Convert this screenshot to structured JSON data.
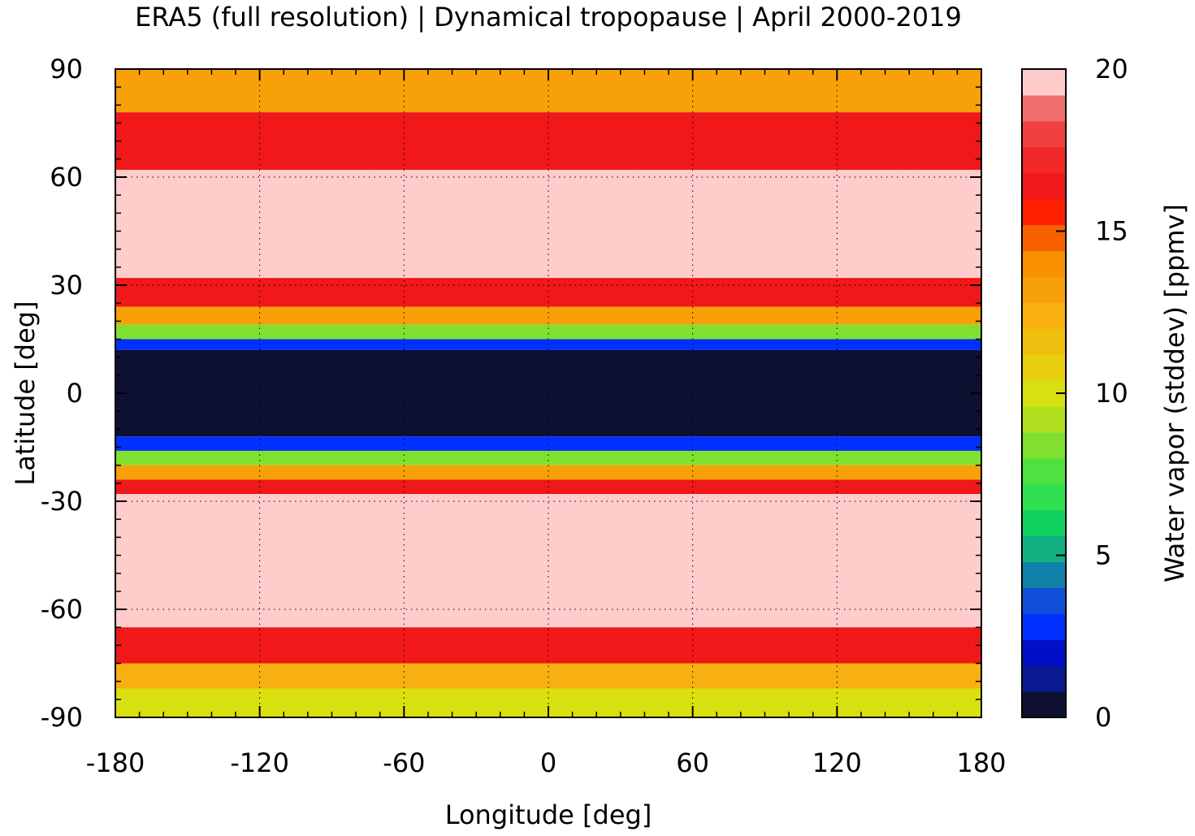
{
  "chart_data": {
    "type": "heatmap",
    "title": "ERA5 (full resolution) | Dynamical tropopause | April 2000-2019",
    "xlabel": "Longitude [deg]",
    "ylabel": "Latitude [deg]",
    "xlim": [
      -180,
      180
    ],
    "ylim": [
      -90,
      90
    ],
    "x_ticks": [
      -180,
      -120,
      -60,
      0,
      60,
      120,
      180
    ],
    "y_ticks": [
      -90,
      -60,
      -30,
      0,
      30,
      60,
      90
    ],
    "x_tick_labels": [
      "-180",
      "-120",
      "-60",
      "0",
      "60",
      "120",
      "180"
    ],
    "y_tick_labels": [
      "-90",
      "-60",
      "-30",
      "0",
      "30",
      "60",
      "90"
    ],
    "grid": true,
    "colorbar": {
      "label": "Water vapor (stddev) [ppmv]",
      "range": [
        0,
        20
      ],
      "ticks": [
        0,
        5,
        10,
        15,
        20
      ],
      "tick_labels": [
        "0",
        "5",
        "10",
        "15",
        "20"
      ],
      "colors": [
        "#0d1030",
        "#0a1a90",
        "#0010c8",
        "#0030ff",
        "#1050d8",
        "#1080a8",
        "#10b080",
        "#10d060",
        "#30e050",
        "#50e040",
        "#80e030",
        "#b0e020",
        "#d8e010",
        "#e8d010",
        "#f0c010",
        "#f8b010",
        "#f8a008",
        "#f89000",
        "#f86000",
        "#ff2000",
        "#f01818",
        "#f02828",
        "#f04040",
        "#f07070",
        "#ffcccc"
      ]
    },
    "bands": [
      {
        "lat_max": 90,
        "lat_min": 78,
        "value": 13
      },
      {
        "lat_max": 78,
        "lat_min": 62,
        "value": 16
      },
      {
        "lat_max": 62,
        "lat_min": 32,
        "value": 20
      },
      {
        "lat_max": 32,
        "lat_min": 24,
        "value": 16
      },
      {
        "lat_max": 24,
        "lat_min": 19,
        "value": 13
      },
      {
        "lat_max": 19,
        "lat_min": 15,
        "value": 8
      },
      {
        "lat_max": 15,
        "lat_min": 12,
        "value": 3
      },
      {
        "lat_max": 12,
        "lat_min": -12,
        "value": 0.5
      },
      {
        "lat_max": -12,
        "lat_min": -16,
        "value": 3
      },
      {
        "lat_max": -16,
        "lat_min": -20,
        "value": 8
      },
      {
        "lat_max": -20,
        "lat_min": -24,
        "value": 13
      },
      {
        "lat_max": -24,
        "lat_min": -28,
        "value": 16
      },
      {
        "lat_max": -28,
        "lat_min": -65,
        "value": 20
      },
      {
        "lat_max": -65,
        "lat_min": -75,
        "value": 16
      },
      {
        "lat_max": -75,
        "lat_min": -82,
        "value": 12
      },
      {
        "lat_max": -82,
        "lat_min": -90,
        "value": 10
      }
    ]
  }
}
